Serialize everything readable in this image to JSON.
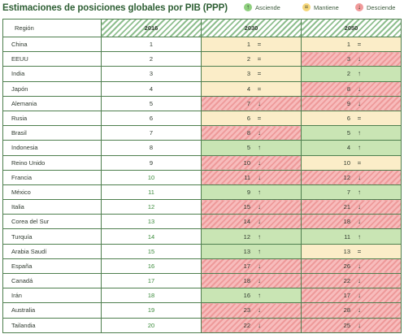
{
  "title": "Estimaciones de posiciones globales por PIB (PPP)",
  "legend": [
    {
      "key": "up",
      "label": "Asciende",
      "symbol": "↑",
      "color": "#8fd07f"
    },
    {
      "key": "same",
      "label": "Mantiene",
      "symbol": "=",
      "color": "#f6d77a"
    },
    {
      "key": "down",
      "label": "Desciende",
      "symbol": "↓",
      "color": "#f19a9a"
    }
  ],
  "chart_data": {
    "type": "table",
    "columns": [
      "Región",
      "2016",
      "2030",
      "2050"
    ],
    "rows": [
      {
        "region": "China",
        "y2016": 1,
        "y2030": 1,
        "t2030": "same",
        "y2050": 1,
        "t2050": "same"
      },
      {
        "region": "EEUU",
        "y2016": 2,
        "y2030": 2,
        "t2030": "same",
        "y2050": 3,
        "t2050": "down"
      },
      {
        "region": "India",
        "y2016": 3,
        "y2030": 3,
        "t2030": "same",
        "y2050": 2,
        "t2050": "up"
      },
      {
        "region": "Japón",
        "y2016": 4,
        "y2030": 4,
        "t2030": "same",
        "y2050": 8,
        "t2050": "down"
      },
      {
        "region": "Alemania",
        "y2016": 5,
        "y2030": 7,
        "t2030": "down",
        "y2050": 9,
        "t2050": "down"
      },
      {
        "region": "Rusia",
        "y2016": 6,
        "y2030": 6,
        "t2030": "same",
        "y2050": 6,
        "t2050": "same"
      },
      {
        "region": "Brasil",
        "y2016": 7,
        "y2030": 8,
        "t2030": "down",
        "y2050": 5,
        "t2050": "up"
      },
      {
        "region": "Indonesia",
        "y2016": 8,
        "y2030": 5,
        "t2030": "up",
        "y2050": 4,
        "t2050": "up"
      },
      {
        "region": "Reino Unido",
        "y2016": 9,
        "y2030": 10,
        "t2030": "down",
        "y2050": 10,
        "t2050": "same"
      },
      {
        "region": "Francia",
        "y2016": 10,
        "y2030": 11,
        "t2030": "down",
        "y2050": 12,
        "t2050": "down"
      },
      {
        "region": "México",
        "y2016": 11,
        "y2030": 9,
        "t2030": "up",
        "y2050": 7,
        "t2050": "up"
      },
      {
        "region": "Italia",
        "y2016": 12,
        "y2030": 15,
        "t2030": "down",
        "y2050": 21,
        "t2050": "down"
      },
      {
        "region": "Corea del Sur",
        "y2016": 13,
        "y2030": 14,
        "t2030": "down",
        "y2050": 18,
        "t2050": "down"
      },
      {
        "region": "Turquía",
        "y2016": 14,
        "y2030": 12,
        "t2030": "up",
        "y2050": 11,
        "t2050": "up"
      },
      {
        "region": "Arabia Saudí",
        "y2016": 15,
        "y2030": 13,
        "t2030": "up",
        "y2050": 13,
        "t2050": "same"
      },
      {
        "region": "España",
        "y2016": 16,
        "y2030": 17,
        "t2030": "down",
        "y2050": 26,
        "t2050": "down"
      },
      {
        "region": "Canadá",
        "y2016": 17,
        "y2030": 18,
        "t2030": "down",
        "y2050": 22,
        "t2050": "down"
      },
      {
        "region": "Irán",
        "y2016": 18,
        "y2030": 16,
        "t2030": "up",
        "y2050": 17,
        "t2050": "down"
      },
      {
        "region": "Australia",
        "y2016": 19,
        "y2030": 23,
        "t2030": "down",
        "y2050": 28,
        "t2050": "down"
      },
      {
        "region": "Tailandia",
        "y2016": 20,
        "y2030": 22,
        "t2030": "down",
        "y2050": 25,
        "t2050": "down"
      }
    ]
  }
}
